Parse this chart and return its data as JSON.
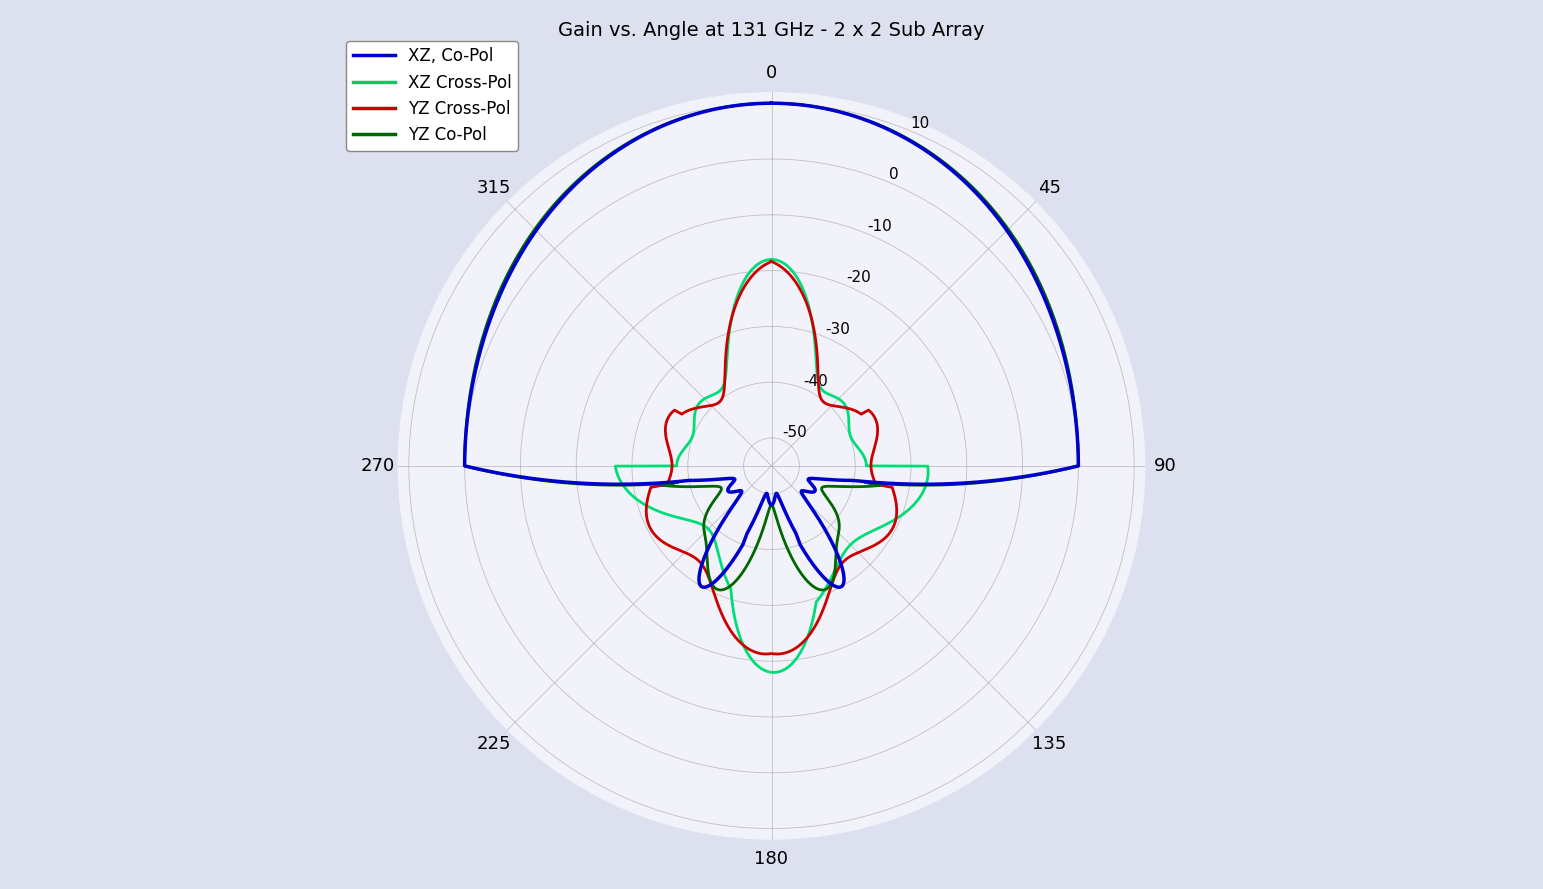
{
  "title": "Gain vs. Angle at 131 GHz - 2 x 2 Sub Array",
  "background_color": "#dde0ee",
  "polar_bg_color": "#f0f0f8",
  "r_min": -55,
  "r_max": 12,
  "r_ticks_db": [
    10,
    0,
    -10,
    -20,
    -30,
    -40,
    -50
  ],
  "theta_tick_angles": [
    0,
    45,
    90,
    135,
    180,
    225,
    270,
    315
  ],
  "theta_tick_labels": [
    "0",
    "45",
    "90",
    "135",
    "180",
    "225",
    "270",
    "315"
  ],
  "legend_entries": [
    "XZ, Co-Pol",
    "XZ Cross-Pol",
    "YZ Cross-Pol",
    "YZ Co-Pol"
  ],
  "legend_colors": [
    "#0000cc",
    "#00cc66",
    "#cc0000",
    "#006600"
  ],
  "line_colors": {
    "xz_copol": "#0000cc",
    "xz_xpol": "#00dd77",
    "yz_xpol": "#cc0000",
    "yz_copol": "#006600"
  },
  "line_widths": {
    "xz_copol": 2.5,
    "xz_xpol": 2.0,
    "yz_xpol": 2.0,
    "yz_copol": 2.0
  }
}
